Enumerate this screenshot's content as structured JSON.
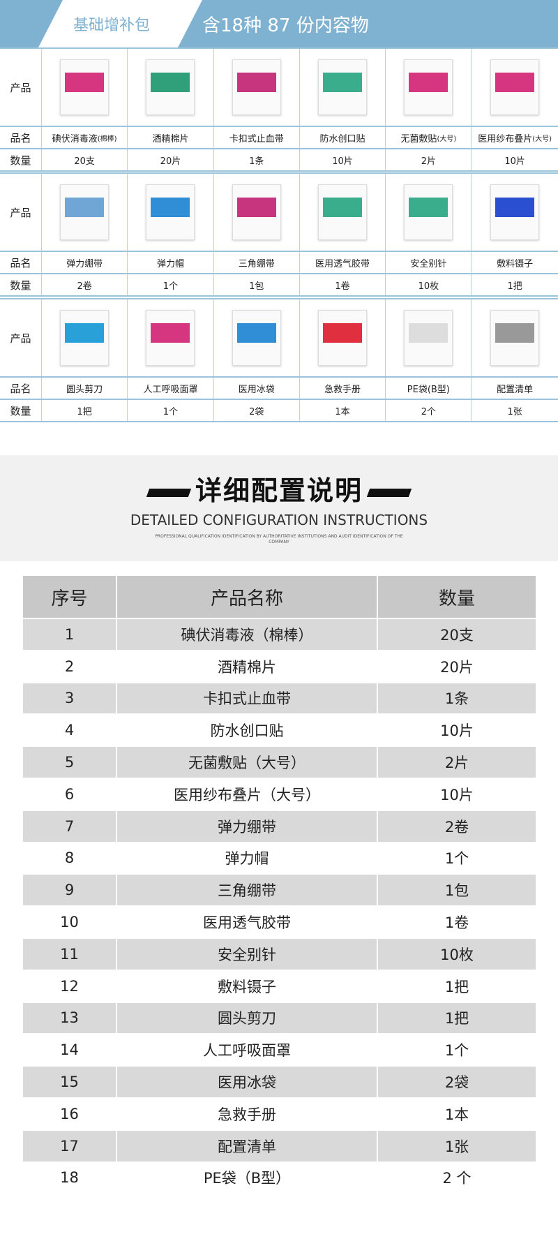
{
  "banner": {
    "tab": "基础增补包",
    "title": "含18种 87 份内容物"
  },
  "labels": {
    "product": "产品",
    "name": "品名",
    "qty": "数量"
  },
  "products": [
    {
      "name": "碘伏消毒液",
      "note": "(棉棒)",
      "qty": "20支",
      "color": "#d6357f"
    },
    {
      "name": "酒精棉片",
      "note": "",
      "qty": "20片",
      "color": "#2fa07a"
    },
    {
      "name": "卡扣式止血带",
      "note": "",
      "qty": "1条",
      "color": "#c8357f"
    },
    {
      "name": "防水创口贴",
      "note": "",
      "qty": "10片",
      "color": "#3aae8c"
    },
    {
      "name": "无菌敷贴",
      "note": "(大号)",
      "qty": "2片",
      "color": "#d6357f"
    },
    {
      "name": "医用纱布叠片",
      "note": "(大号)",
      "qty": "10片",
      "color": "#d6357f"
    },
    {
      "name": "弹力绷带",
      "note": "",
      "qty": "2卷",
      "color": "#6fa6d6"
    },
    {
      "name": "弹力帽",
      "note": "",
      "qty": "1个",
      "color": "#2f8ed6"
    },
    {
      "name": "三角绷带",
      "note": "",
      "qty": "1包",
      "color": "#c8357f"
    },
    {
      "name": "医用透气胶带",
      "note": "",
      "qty": "1卷",
      "color": "#3aae8c"
    },
    {
      "name": "安全别针",
      "note": "",
      "qty": "10枚",
      "color": "#3aae8c"
    },
    {
      "name": "敷料镊子",
      "note": "",
      "qty": "1把",
      "color": "#2a4fd0"
    },
    {
      "name": "圆头剪刀",
      "note": "",
      "qty": "1把",
      "color": "#2aa0d8"
    },
    {
      "name": "人工呼吸面罩",
      "note": "",
      "qty": "1个",
      "color": "#d6357f"
    },
    {
      "name": "医用冰袋",
      "note": "",
      "qty": "2袋",
      "color": "#2f8ed6"
    },
    {
      "name": "急救手册",
      "note": "",
      "qty": "1本",
      "color": "#e03040"
    },
    {
      "name": "PE袋(B型)",
      "note": "",
      "qty": "2个",
      "color": "#dddddd"
    },
    {
      "name": "配置清单",
      "note": "",
      "qty": "1张",
      "color": "#999999"
    }
  ],
  "section": {
    "title": "详细配置说明",
    "en": "DETAILED CONFIGURATION INSTRUCTIONS",
    "sub": "PROFESSIONAL QUALIFICATION IDENTIFICATION BY AUTHORITATIVE INSTITUTIONS AND AUDIT IDENTIFICATION OF THE COMPANY"
  },
  "table": {
    "headers": [
      "序号",
      "产品名称",
      "数量"
    ],
    "rows": [
      [
        "1",
        "碘伏消毒液（棉棒）",
        "20支"
      ],
      [
        "2",
        "酒精棉片",
        "20片"
      ],
      [
        "3",
        "卡扣式止血带",
        "1条"
      ],
      [
        "4",
        "防水创口贴",
        "10片"
      ],
      [
        "5",
        "无菌敷贴（大号）",
        "2片"
      ],
      [
        "6",
        "医用纱布叠片（大号）",
        "10片"
      ],
      [
        "7",
        "弹力绷带",
        "2卷"
      ],
      [
        "8",
        "弹力帽",
        "1个"
      ],
      [
        "9",
        "三角绷带",
        "1包"
      ],
      [
        "10",
        "医用透气胶带",
        "1卷"
      ],
      [
        "11",
        "安全别针",
        "10枚"
      ],
      [
        "12",
        "敷料镊子",
        "1把"
      ],
      [
        "13",
        "圆头剪刀",
        "1把"
      ],
      [
        "14",
        "人工呼吸面罩",
        "1个"
      ],
      [
        "15",
        "医用冰袋",
        "2袋"
      ],
      [
        "16",
        "急救手册",
        "1本"
      ],
      [
        "17",
        "配置清单",
        "1张"
      ],
      [
        "18",
        "PE袋（B型）",
        "2 个"
      ]
    ]
  }
}
